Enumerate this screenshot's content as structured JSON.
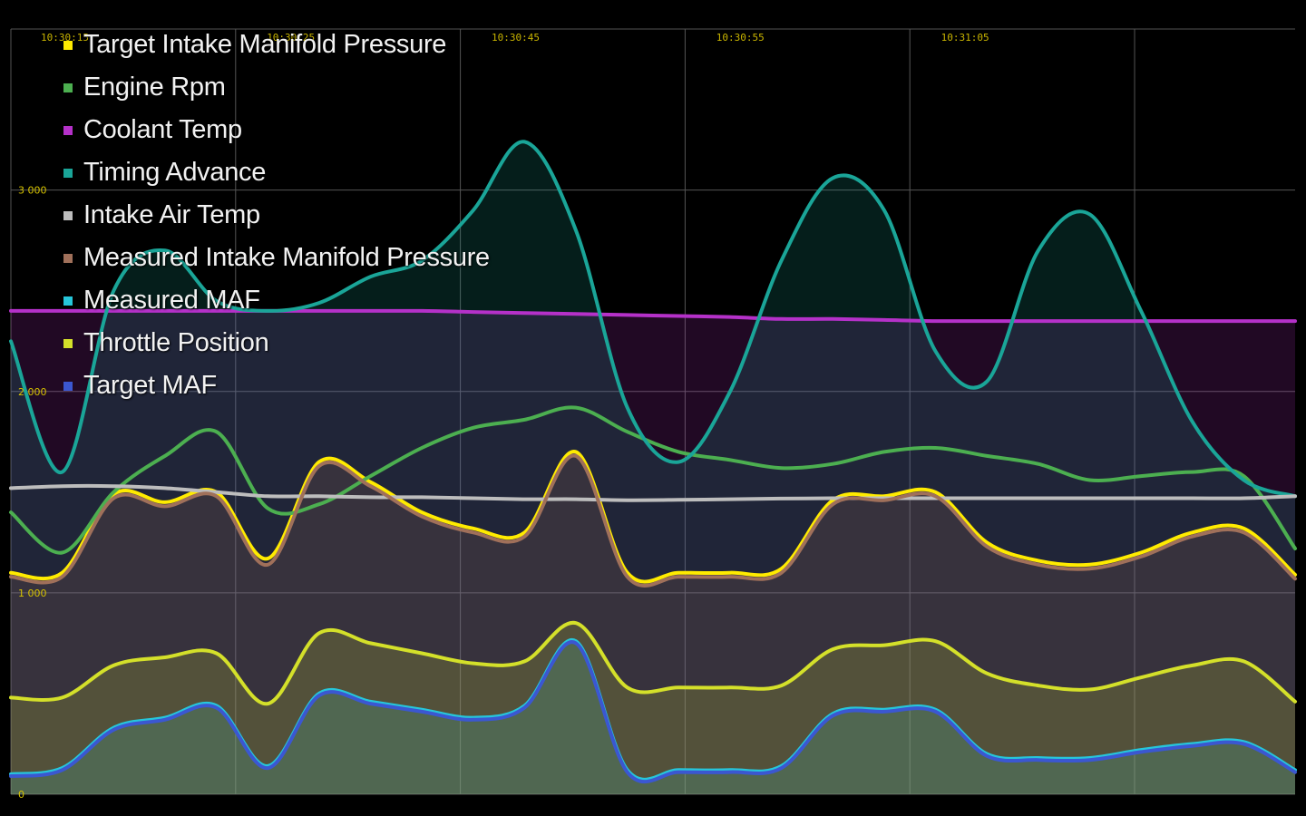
{
  "chart_data": {
    "type": "line",
    "x_ticks": [
      "10:30:15",
      "10:30:25",
      "10:30:45",
      "10:30:55",
      "10:31:05"
    ],
    "y_ticks": [
      "0",
      "1 000",
      "2 000",
      "3 000"
    ],
    "ylim": [
      0,
      3800
    ],
    "grid": true,
    "legend_position": "top-left",
    "x": [
      0,
      4,
      8,
      12,
      16,
      20,
      24,
      28,
      32,
      36,
      40,
      44,
      48,
      52,
      56,
      60,
      64,
      68,
      72,
      76,
      80,
      84,
      88,
      92,
      96,
      100
    ],
    "series": [
      {
        "name": "Target Intake Manifold Pressure",
        "color": "#ffeb00",
        "fill": false,
        "values": [
          1100,
          1100,
          1490,
          1450,
          1500,
          1170,
          1650,
          1550,
          1400,
          1320,
          1300,
          1700,
          1100,
          1100,
          1100,
          1120,
          1460,
          1480,
          1500,
          1250,
          1160,
          1140,
          1200,
          1300,
          1320,
          1090
        ]
      },
      {
        "name": "Engine Rpm",
        "color": "#4caf50",
        "fill": false,
        "values": [
          1400,
          1200,
          1500,
          1680,
          1800,
          1420,
          1440,
          1580,
          1720,
          1820,
          1860,
          1920,
          1800,
          1700,
          1660,
          1620,
          1640,
          1700,
          1720,
          1680,
          1640,
          1560,
          1580,
          1600,
          1580,
          1220
        ]
      },
      {
        "name": "Coolant Temp",
        "color": "#b531c9",
        "fill": true,
        "values": [
          2400,
          2400,
          2400,
          2400,
          2400,
          2400,
          2400,
          2400,
          2400,
          2395,
          2390,
          2385,
          2380,
          2375,
          2370,
          2360,
          2360,
          2355,
          2350,
          2350,
          2350,
          2350,
          2350,
          2350,
          2350,
          2350
        ]
      },
      {
        "name": "Timing Advance",
        "color": "#1aa598",
        "fill": true,
        "values": [
          2250,
          1600,
          2500,
          2700,
          2450,
          2400,
          2440,
          2570,
          2650,
          2900,
          3240,
          2800,
          1920,
          1650,
          2000,
          2650,
          3060,
          2900,
          2200,
          2050,
          2700,
          2880,
          2400,
          1850,
          1560,
          1480
        ]
      },
      {
        "name": "Intake Air Temp",
        "color": "#bdbdbd",
        "fill": false,
        "values": [
          1520,
          1530,
          1530,
          1520,
          1500,
          1480,
          1480,
          1475,
          1475,
          1470,
          1465,
          1465,
          1460,
          1462,
          1465,
          1468,
          1470,
          1470,
          1470,
          1470,
          1470,
          1470,
          1470,
          1470,
          1470,
          1480
        ]
      },
      {
        "name": "Measured Intake Manifold Pressure",
        "color": "#a0705a",
        "fill": true,
        "values": [
          1080,
          1080,
          1470,
          1430,
          1480,
          1140,
          1630,
          1530,
          1380,
          1300,
          1280,
          1680,
          1080,
          1080,
          1080,
          1100,
          1440,
          1460,
          1480,
          1230,
          1140,
          1120,
          1180,
          1280,
          1300,
          1070
        ]
      },
      {
        "name": "Measured MAF",
        "color": "#26c6da",
        "fill": true,
        "values": [
          100,
          130,
          330,
          380,
          440,
          140,
          500,
          460,
          420,
          380,
          440,
          760,
          120,
          120,
          120,
          140,
          400,
          420,
          420,
          200,
          180,
          180,
          220,
          250,
          260,
          120
        ]
      },
      {
        "name": "Throttle Position",
        "color": "#d4e02a",
        "fill": true,
        "values": [
          480,
          480,
          640,
          680,
          700,
          450,
          800,
          750,
          700,
          650,
          660,
          850,
          530,
          530,
          530,
          540,
          720,
          740,
          760,
          600,
          540,
          520,
          580,
          640,
          660,
          460
        ]
      },
      {
        "name": "Target MAF",
        "color": "#3b57d1",
        "fill": false,
        "values": [
          90,
          120,
          320,
          370,
          430,
          130,
          490,
          450,
          410,
          370,
          430,
          750,
          110,
          110,
          110,
          130,
          390,
          410,
          410,
          190,
          170,
          170,
          210,
          240,
          250,
          110
        ]
      }
    ]
  }
}
